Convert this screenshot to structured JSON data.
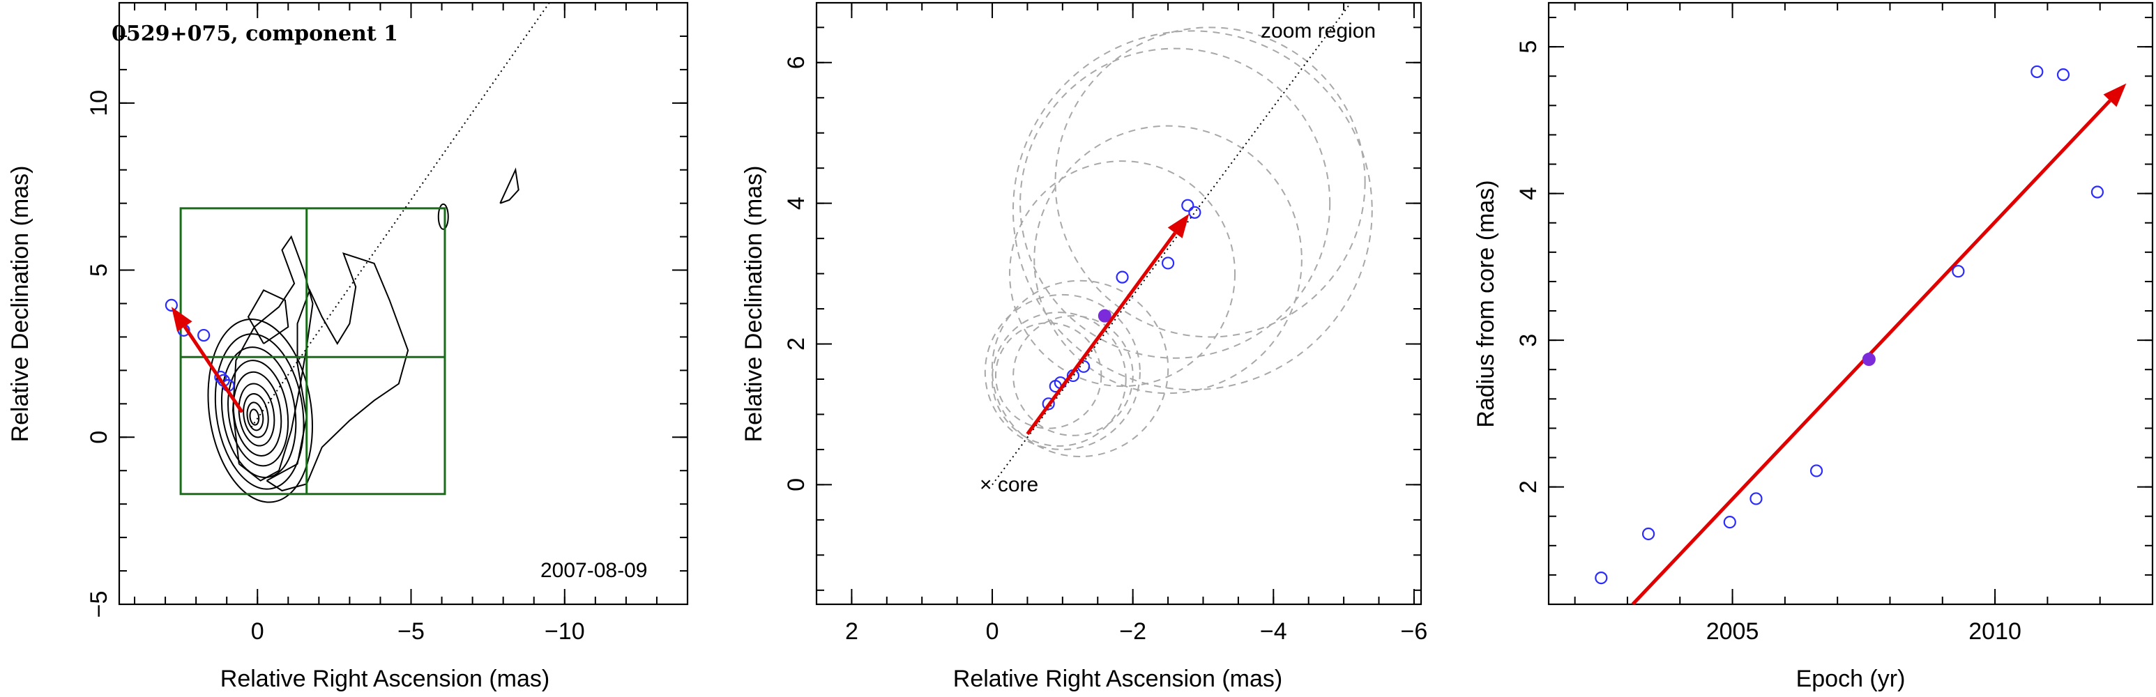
{
  "colors": {
    "arrow": "#e00000",
    "box": "#1a6b1a",
    "open_marker": "#2b2bff",
    "filled_marker": "#7b2bd9",
    "circles": "#a8a8a8"
  },
  "chart_data": [
    {
      "type": "scatter",
      "panel": "left",
      "title": "0529+075, component 1",
      "date": "2007-08-09",
      "xlabel": "Relative Right Ascension (mas)",
      "ylabel": "Relative Declination (mas)",
      "xlim": [
        4.5,
        -14
      ],
      "ylim": [
        -5,
        13
      ],
      "x_reversed": true,
      "xticks": [
        0,
        -5,
        -10
      ],
      "xtick_labels": [
        "0",
        "−5",
        "−10"
      ],
      "yticks": [
        -5,
        0,
        5,
        10
      ],
      "ytick_labels": [
        "−5",
        "0",
        "5",
        "10"
      ],
      "points_open": [
        {
          "x": 0.95,
          "y": 1.55
        },
        {
          "x": 1.1,
          "y": 1.7
        },
        {
          "x": 1.2,
          "y": 1.8
        },
        {
          "x": 1.75,
          "y": 3.05
        },
        {
          "x": 2.4,
          "y": 3.2
        },
        {
          "x": 2.8,
          "y": 3.95
        }
      ],
      "arrow": {
        "x0": 0.5,
        "y0": 0.75,
        "x1": 2.8,
        "y1": 3.9
      },
      "guide_line": {
        "x0": 0.2,
        "y0": 0.3,
        "x1": -9.5,
        "y1": 13
      },
      "zoom_box": {
        "x0": 2.5,
        "x1": -6.1,
        "y0": -1.7,
        "y1": 6.85,
        "xmid": -1.6,
        "ymid": 2.4
      },
      "grid": false
    },
    {
      "type": "scatter",
      "panel": "middle",
      "annotations": [
        "zoom region",
        "× core"
      ],
      "xlabel": "Relative Right Ascension (mas)",
      "ylabel": "Relative Declination (mas)",
      "xlim": [
        2.5,
        -6.1
      ],
      "ylim": [
        -1.7,
        6.85
      ],
      "x_reversed": true,
      "xticks": [
        2,
        0,
        -2,
        -4,
        -6
      ],
      "xtick_labels": [
        "2",
        "0",
        "−2",
        "−4",
        "−6"
      ],
      "yticks": [
        0,
        2,
        4,
        6
      ],
      "ytick_labels": [
        "0",
        "2",
        "4",
        "6"
      ],
      "points_open": [
        {
          "x": -0.8,
          "y": 1.15
        },
        {
          "x": -0.9,
          "y": 1.4
        },
        {
          "x": -0.97,
          "y": 1.45
        },
        {
          "x": -1.15,
          "y": 1.55
        },
        {
          "x": -1.3,
          "y": 1.68
        },
        {
          "x": -1.85,
          "y": 2.95
        },
        {
          "x": -2.5,
          "y": 3.15
        },
        {
          "x": -2.78,
          "y": 3.97
        },
        {
          "x": -2.88,
          "y": 3.87
        }
      ],
      "points_filled": [
        {
          "x": -1.6,
          "y": 2.4
        }
      ],
      "circles": [
        {
          "x": -0.8,
          "y": 1.55,
          "r": 0.75
        },
        {
          "x": -0.95,
          "y": 1.5,
          "r": 0.95
        },
        {
          "x": -1.0,
          "y": 1.6,
          "r": 1.1
        },
        {
          "x": -1.15,
          "y": 1.55,
          "r": 0.85
        },
        {
          "x": -1.25,
          "y": 1.65,
          "r": 1.25
        },
        {
          "x": -1.85,
          "y": 3.0,
          "r": 1.6
        },
        {
          "x": -2.5,
          "y": 3.2,
          "r": 1.9
        },
        {
          "x": -2.6,
          "y": 4.0,
          "r": 2.2
        },
        {
          "x": -2.85,
          "y": 3.9,
          "r": 2.55
        },
        {
          "x": -3.1,
          "y": 4.3,
          "r": 2.2
        }
      ],
      "arrow": {
        "x0": -0.5,
        "y0": 0.72,
        "x1": -2.8,
        "y1": 3.85
      },
      "guide_line": {
        "x0": 0,
        "y0": 0,
        "x1": -5.1,
        "y1": 6.85
      },
      "grid": false
    },
    {
      "type": "scatter",
      "panel": "right",
      "xlabel": "Epoch (yr)",
      "ylabel": "Radius from core (mas)",
      "xlim": [
        2001.5,
        2013.0
      ],
      "ylim": [
        1.2,
        5.3
      ],
      "xticks": [
        2005,
        2010
      ],
      "xtick_labels": [
        "2005",
        "2010"
      ],
      "yticks": [
        2,
        3,
        4,
        5
      ],
      "ytick_labels": [
        "2",
        "3",
        "4",
        "5"
      ],
      "points_open": [
        {
          "x": 2002.5,
          "y": 1.38
        },
        {
          "x": 2003.4,
          "y": 1.68
        },
        {
          "x": 2004.95,
          "y": 1.76
        },
        {
          "x": 2005.45,
          "y": 1.92
        },
        {
          "x": 2006.6,
          "y": 2.11
        },
        {
          "x": 2009.3,
          "y": 3.47
        },
        {
          "x": 2010.8,
          "y": 4.83
        },
        {
          "x": 2011.3,
          "y": 4.81
        },
        {
          "x": 2011.95,
          "y": 4.01
        }
      ],
      "points_filled": [
        {
          "x": 2007.6,
          "y": 2.87
        }
      ],
      "arrow": {
        "x0": 2003.1,
        "y0": 1.2,
        "x1": 2012.5,
        "y1": 4.75
      },
      "grid": false
    }
  ]
}
